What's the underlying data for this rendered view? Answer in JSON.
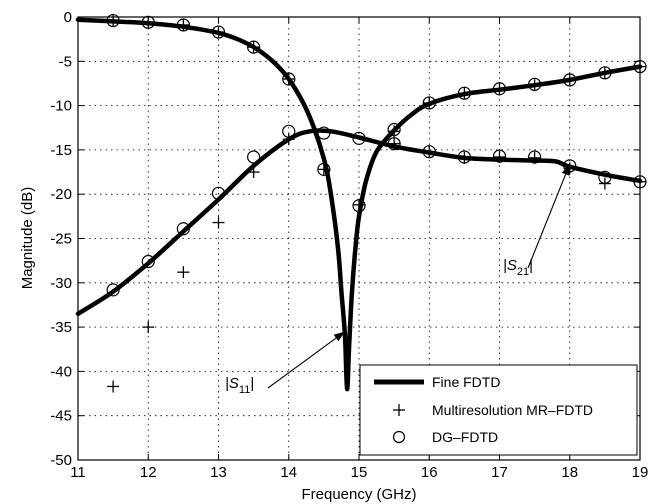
{
  "chart_data": {
    "type": "line",
    "xlabel": "Frequency (GHz)",
    "ylabel": "Magnitude (dB)",
    "xlim": [
      11,
      19
    ],
    "ylim": [
      -50,
      0
    ],
    "xticks": [
      11,
      12,
      13,
      14,
      15,
      16,
      17,
      18,
      19
    ],
    "yticks": [
      0,
      -5,
      -10,
      -15,
      -20,
      -25,
      -30,
      -35,
      -40,
      -45,
      -50
    ],
    "grid": "dotted",
    "legend_position": "bottom-right",
    "series": [
      {
        "name": "Fine FDTD",
        "style": "thick-line",
        "curves": [
          {
            "label": "S11",
            "x": [
              11,
              11.5,
              12,
              12.5,
              13,
              13.3,
              13.6,
              13.9,
              14.1,
              14.3,
              14.5,
              14.6,
              14.7,
              14.75,
              14.8,
              14.83,
              14.86,
              14.9,
              14.95,
              15,
              15.1,
              15.25,
              15.5,
              15.75,
              16,
              16.5,
              17,
              17.5,
              18,
              18.5,
              19
            ],
            "y": [
              -0.3,
              -0.5,
              -0.7,
              -1.1,
              -1.8,
              -2.6,
              -3.9,
              -6,
              -8.2,
              -11.3,
              -16,
              -20,
              -26,
              -31,
              -36,
              -42,
              -37,
              -31,
              -26,
              -22.5,
              -18.5,
              -15.2,
              -12.8,
              -11,
              -9.8,
              -8.7,
              -8.2,
              -7.7,
              -7.1,
              -6.3,
              -5.6
            ]
          },
          {
            "label": "S21",
            "x": [
              11,
              11.5,
              12,
              12.5,
              13,
              13.5,
              14,
              14.3,
              14.6,
              15,
              15.5,
              16,
              16.5,
              17,
              17.5,
              17.8,
              18,
              18.5,
              19
            ],
            "y": [
              -33.5,
              -31,
              -27.8,
              -24.2,
              -20.6,
              -16.8,
              -13.8,
              -12.9,
              -12.9,
              -13.6,
              -14.6,
              -15.3,
              -15.9,
              -16.1,
              -16.2,
              -16.3,
              -16.9,
              -17.8,
              -18.5
            ]
          }
        ]
      },
      {
        "name": "Multiresolution MR–FDTD",
        "style": "plus-marker",
        "points": [
          [
            11.5,
            -41.7
          ],
          [
            12,
            -35
          ],
          [
            12.5,
            -28.8
          ],
          [
            13,
            -23.2
          ],
          [
            13.5,
            -17.5
          ],
          [
            14,
            -13.8
          ],
          [
            14.5,
            -17.2
          ],
          [
            15,
            -21.2
          ],
          [
            15.5,
            -12.9
          ],
          [
            16,
            -9.7
          ],
          [
            16.5,
            -8.6
          ],
          [
            17,
            -8.1
          ],
          [
            17.5,
            -7.7
          ],
          [
            18,
            -7.1
          ],
          [
            18.5,
            -6.3
          ],
          [
            19,
            -5.6
          ],
          [
            11.5,
            -0.4
          ],
          [
            12,
            -0.6
          ],
          [
            12.5,
            -0.9
          ],
          [
            13,
            -1.7
          ],
          [
            13.5,
            -3.4
          ],
          [
            14,
            -7
          ],
          [
            15.5,
            -14.3
          ],
          [
            16,
            -15.2
          ],
          [
            16.5,
            -15.9
          ],
          [
            17,
            -15.8
          ],
          [
            17.5,
            -15.9
          ],
          [
            18,
            -17.1
          ],
          [
            18.5,
            -18.8
          ],
          [
            19,
            -18.6
          ]
        ]
      },
      {
        "name": "DG–FDTD",
        "style": "circle-marker",
        "points": [
          [
            11.5,
            -0.4
          ],
          [
            12,
            -0.6
          ],
          [
            12.5,
            -0.9
          ],
          [
            13,
            -1.7
          ],
          [
            13.5,
            -3.4
          ],
          [
            14,
            -7
          ],
          [
            14.5,
            -17.2
          ],
          [
            15,
            -21.3
          ],
          [
            15.5,
            -12.7
          ],
          [
            16,
            -9.7
          ],
          [
            16.5,
            -8.6
          ],
          [
            17,
            -8.1
          ],
          [
            17.5,
            -7.6
          ],
          [
            18,
            -7.1
          ],
          [
            18.5,
            -6.3
          ],
          [
            19,
            -5.6
          ],
          [
            11.5,
            -30.8
          ],
          [
            12,
            -27.6
          ],
          [
            12.5,
            -23.9
          ],
          [
            13,
            -19.9
          ],
          [
            13.5,
            -15.8
          ],
          [
            14,
            -12.9
          ],
          [
            14.5,
            -13.1
          ],
          [
            15,
            -13.7
          ],
          [
            15.5,
            -14.3
          ],
          [
            16,
            -15.2
          ],
          [
            16.5,
            -15.8
          ],
          [
            17,
            -15.7
          ],
          [
            17.5,
            -15.8
          ],
          [
            18,
            -16.8
          ],
          [
            18.5,
            -18.1
          ],
          [
            19,
            -18.6
          ]
        ]
      }
    ],
    "annotations": [
      {
        "text": "|S",
        "sub": "11",
        "suffix": "|",
        "target_x": 14.8,
        "target_y": -35.5
      },
      {
        "text": "|S",
        "sub": "21",
        "suffix": "|",
        "target_x": 18,
        "target_y": -16.6
      }
    ]
  }
}
